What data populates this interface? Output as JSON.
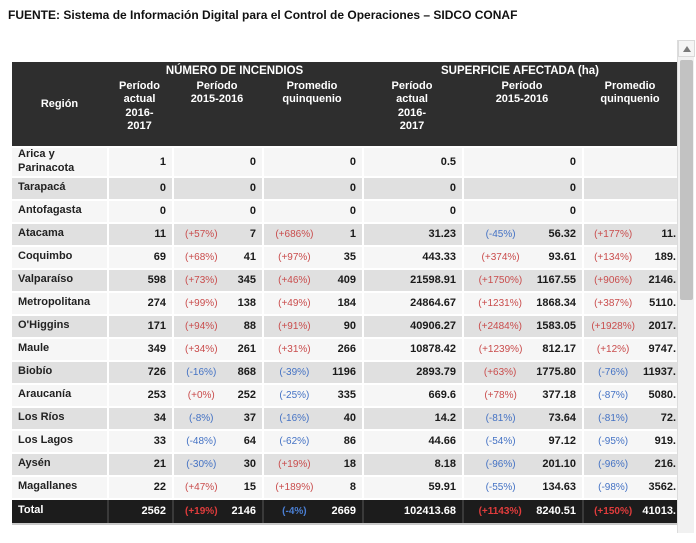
{
  "source_line": "FUENTE: Sistema de Información Digital para el Control de Operaciones – SIDCO CONAF",
  "colors": {
    "positive_pct": "#c94c4c",
    "negative_pct": "#4472c4",
    "header_bg": "#2e2e2e",
    "total_bg": "#1c1c1c",
    "row_light": "#f6f6f6",
    "row_dark": "#e0e0e0"
  },
  "table": {
    "region_header": "Región",
    "groups": [
      {
        "title": "NÚMERO DE INCENDIOS",
        "columns": [
          "Período\nactual\n2016-\n2017",
          "Período\n2015-2016",
          "Promedio\nquinquenio"
        ]
      },
      {
        "title": "SUPERFICIE AFECTADA (ha)",
        "columns": [
          "Período\nactual\n2016-\n2017",
          "Período\n2015-2016",
          "Promedio\nquinquenio"
        ]
      }
    ],
    "rows": [
      {
        "region": "Arica y Parinacota",
        "na": "1",
        "npp": "",
        "npv": "0",
        "nqp": "",
        "nqv": "0",
        "sa": "0.5",
        "spp": "",
        "spv": "0",
        "sqp": "",
        "sqv": ""
      },
      {
        "region": "Tarapacá",
        "na": "0",
        "npp": "",
        "npv": "0",
        "nqp": "",
        "nqv": "0",
        "sa": "0",
        "spp": "",
        "spv": "0",
        "sqp": "",
        "sqv": ""
      },
      {
        "region": "Antofagasta",
        "na": "0",
        "npp": "",
        "npv": "0",
        "nqp": "",
        "nqv": "0",
        "sa": "0",
        "spp": "",
        "spv": "0",
        "sqp": "",
        "sqv": ""
      },
      {
        "region": "Atacama",
        "na": "11",
        "npp": "(+57%)",
        "npv": "7",
        "nqp": "(+686%)",
        "nqv": "1",
        "sa": "31.23",
        "spp": "(-45%)",
        "spv": "56.32",
        "sqp": "(+177%)",
        "sqv": "11."
      },
      {
        "region": "Coquimbo",
        "na": "69",
        "npp": "(+68%)",
        "npv": "41",
        "nqp": "(+97%)",
        "nqv": "35",
        "sa": "443.33",
        "spp": "(+374%)",
        "spv": "93.61",
        "sqp": "(+134%)",
        "sqv": "189."
      },
      {
        "region": "Valparaíso",
        "na": "598",
        "npp": "(+73%)",
        "npv": "345",
        "nqp": "(+46%)",
        "nqv": "409",
        "sa": "21598.91",
        "spp": "(+1750%)",
        "spv": "1167.55",
        "sqp": "(+906%)",
        "sqv": "2146."
      },
      {
        "region": "Metropolitana",
        "na": "274",
        "npp": "(+99%)",
        "npv": "138",
        "nqp": "(+49%)",
        "nqv": "184",
        "sa": "24864.67",
        "spp": "(+1231%)",
        "spv": "1868.34",
        "sqp": "(+387%)",
        "sqv": "5110."
      },
      {
        "region": "O'Higgins",
        "na": "171",
        "npp": "(+94%)",
        "npv": "88",
        "nqp": "(+91%)",
        "nqv": "90",
        "sa": "40906.27",
        "spp": "(+2484%)",
        "spv": "1583.05",
        "sqp": "(+1928%)",
        "sqv": "2017."
      },
      {
        "region": "Maule",
        "na": "349",
        "npp": "(+34%)",
        "npv": "261",
        "nqp": "(+31%)",
        "nqv": "266",
        "sa": "10878.42",
        "spp": "(+1239%)",
        "spv": "812.17",
        "sqp": "(+12%)",
        "sqv": "9747."
      },
      {
        "region": "Biobío",
        "na": "726",
        "npp": "(-16%)",
        "npv": "868",
        "nqp": "(-39%)",
        "nqv": "1196",
        "sa": "2893.79",
        "spp": "(+63%)",
        "spv": "1775.80",
        "sqp": "(-76%)",
        "sqv": "11937."
      },
      {
        "region": "Araucanía",
        "na": "253",
        "npp": "(+0%)",
        "npv": "252",
        "nqp": "(-25%)",
        "nqv": "335",
        "sa": "669.6",
        "spp": "(+78%)",
        "spv": "377.18",
        "sqp": "(-87%)",
        "sqv": "5080."
      },
      {
        "region": "Los Ríos",
        "na": "34",
        "npp": "(-8%)",
        "npv": "37",
        "nqp": "(-16%)",
        "nqv": "40",
        "sa": "14.2",
        "spp": "(-81%)",
        "spv": "73.64",
        "sqp": "(-81%)",
        "sqv": "72."
      },
      {
        "region": "Los Lagos",
        "na": "33",
        "npp": "(-48%)",
        "npv": "64",
        "nqp": "(-62%)",
        "nqv": "86",
        "sa": "44.66",
        "spp": "(-54%)",
        "spv": "97.12",
        "sqp": "(-95%)",
        "sqv": "919."
      },
      {
        "region": "Aysén",
        "na": "21",
        "npp": "(-30%)",
        "npv": "30",
        "nqp": "(+19%)",
        "nqv": "18",
        "sa": "8.18",
        "spp": "(-96%)",
        "spv": "201.10",
        "sqp": "(-96%)",
        "sqv": "216."
      },
      {
        "region": "Magallanes",
        "na": "22",
        "npp": "(+47%)",
        "npv": "15",
        "nqp": "(+189%)",
        "nqv": "8",
        "sa": "59.91",
        "spp": "(-55%)",
        "spv": "134.63",
        "sqp": "(-98%)",
        "sqv": "3562."
      }
    ],
    "total": {
      "region": "Total",
      "na": "2562",
      "npp": "(+19%)",
      "npv": "2146",
      "nqp": "(-4%)",
      "nqv": "2669",
      "sa": "102413.68",
      "spp": "(+1143%)",
      "spv": "8240.51",
      "sqp": "(+150%)",
      "sqv": "41013."
    }
  }
}
